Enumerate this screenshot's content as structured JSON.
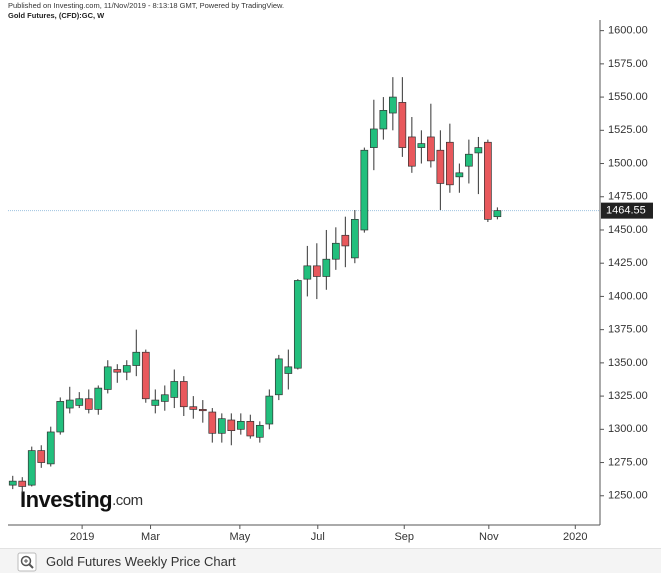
{
  "header": {
    "published": "Published on Investing.com, 11/Nov/2019 - 8:13:18 GMT, Powered by TradingView.",
    "symbol": "Gold Futures, (CFD):GC, W"
  },
  "logo": {
    "name": "Investing",
    "suffix": ".com"
  },
  "caption": "Gold Futures Weekly Price Chart",
  "chart_data": {
    "type": "candlestick",
    "categories": [
      null,
      null,
      null,
      null,
      null,
      null,
      null,
      null,
      null,
      null,
      null,
      null,
      null,
      null,
      null,
      null,
      null,
      null,
      null,
      null,
      null,
      null,
      null,
      null,
      null,
      null,
      null,
      null,
      null,
      null,
      null,
      null,
      null,
      null,
      null,
      null,
      null,
      null,
      null,
      null,
      null,
      null,
      null,
      null,
      null,
      null,
      null,
      null,
      null,
      null,
      null,
      null
    ],
    "open": [
      1258,
      1261,
      1258,
      1284,
      1274,
      1298,
      1316,
      1318,
      1323,
      1315,
      1330,
      1345,
      1343,
      1348,
      1358,
      1318,
      1321,
      1324,
      1336,
      1317,
      1315,
      1313,
      1297,
      1307,
      1300,
      1306,
      1294,
      1304,
      1326,
      1342,
      1346,
      1413,
      1423,
      1415,
      1428,
      1446,
      1429,
      1450,
      1512,
      1526,
      1538,
      1546,
      1520,
      1512,
      1520,
      1510,
      1516,
      1490,
      1498,
      1508,
      1516,
      1460
    ],
    "high": [
      1265,
      1264,
      1287,
      1288,
      1302,
      1324,
      1332,
      1328,
      1330,
      1333,
      1352,
      1349,
      1352,
      1375,
      1360,
      1330,
      1333,
      1345,
      1340,
      1325,
      1322,
      1316,
      1312,
      1312,
      1312,
      1311,
      1306,
      1330,
      1356,
      1360,
      1413,
      1438,
      1440,
      1450,
      1452,
      1460,
      1465,
      1512,
      1548,
      1550,
      1565,
      1565,
      1535,
      1525,
      1545,
      1525,
      1530,
      1500,
      1518,
      1520,
      1518,
      1467
    ],
    "low": [
      1255,
      1252,
      1257,
      1271,
      1272,
      1296,
      1312,
      1316,
      1312,
      1311,
      1327,
      1335,
      1337,
      1340,
      1320,
      1312,
      1314,
      1316,
      1310,
      1308,
      1305,
      1290,
      1290,
      1288,
      1296,
      1293,
      1290,
      1300,
      1322,
      1330,
      1345,
      1400,
      1398,
      1405,
      1420,
      1422,
      1425,
      1448,
      1495,
      1518,
      1525,
      1505,
      1493,
      1500,
      1497,
      1465,
      1478,
      1478,
      1485,
      1477,
      1456,
      1458
    ],
    "close": [
      1261,
      1257,
      1284,
      1275,
      1298,
      1321,
      1322,
      1323,
      1315,
      1331,
      1347,
      1343,
      1348,
      1358,
      1323,
      1322,
      1326,
      1336,
      1317,
      1315,
      1314,
      1297,
      1308,
      1299,
      1306,
      1295,
      1303,
      1325,
      1353,
      1347,
      1412,
      1423,
      1415,
      1428,
      1440,
      1438,
      1458,
      1510,
      1526,
      1540,
      1550,
      1512,
      1498,
      1515,
      1502,
      1485,
      1484,
      1493,
      1507,
      1512,
      1458,
      1464.55
    ],
    "up_color": "#22bf7d",
    "down_color": "#e8585c",
    "last_price": 1464.55,
    "xlim": [
      -0.5,
      61.8
    ],
    "xticks": [
      {
        "value": 7.3,
        "label": "2019"
      },
      {
        "value": 14.5,
        "label": "Mar"
      },
      {
        "value": 23.9,
        "label": "May"
      },
      {
        "value": 32.1,
        "label": "Jul"
      },
      {
        "value": 41.2,
        "label": "Sep"
      },
      {
        "value": 50.1,
        "label": "Nov"
      },
      {
        "value": 59.2,
        "label": "2020"
      }
    ],
    "ylim": [
      1228,
      1608
    ],
    "yticks": [
      {
        "value": 1250,
        "label": "1250.00"
      },
      {
        "value": 1275,
        "label": "1275.00"
      },
      {
        "value": 1300,
        "label": "1300.00"
      },
      {
        "value": 1325,
        "label": "1325.00"
      },
      {
        "value": 1350,
        "label": "1350.00"
      },
      {
        "value": 1375,
        "label": "1375.00"
      },
      {
        "value": 1400,
        "label": "1400.00"
      },
      {
        "value": 1425,
        "label": "1425.00"
      },
      {
        "value": 1450,
        "label": "1450.00"
      },
      {
        "value": 1475,
        "label": "1475.00"
      },
      {
        "value": 1500,
        "label": "1500.00"
      },
      {
        "value": 1525,
        "label": "1525.00"
      },
      {
        "value": 1550,
        "label": "1550.00"
      },
      {
        "value": 1575,
        "label": "1575.00"
      },
      {
        "value": 1600,
        "label": "1600.00"
      }
    ]
  }
}
